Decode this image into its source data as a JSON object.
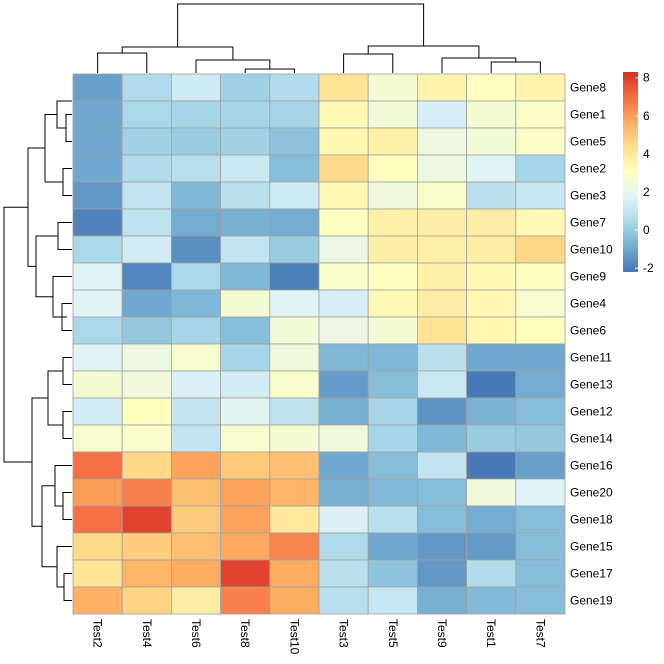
{
  "chart_data": {
    "type": "heatmap",
    "columns": [
      "Test2",
      "Test4",
      "Test6",
      "Test8",
      "Test10",
      "Test3",
      "Test5",
      "Test9",
      "Test1",
      "Test7"
    ],
    "rows": [
      "Gene8",
      "Gene1",
      "Gene5",
      "Gene2",
      "Gene3",
      "Gene7",
      "Gene10",
      "Gene9",
      "Gene4",
      "Gene6",
      "Gene11",
      "Gene13",
      "Gene12",
      "Gene14",
      "Gene16",
      "Gene20",
      "Gene18",
      "Gene15",
      "Gene17",
      "Gene19"
    ],
    "values": [
      [
        -1.2,
        0.5,
        1.3,
        0.2,
        0.6,
        4.2,
        2.6,
        3.5,
        3.0,
        3.5
      ],
      [
        -1.0,
        0.4,
        0.3,
        0.3,
        0.3,
        3.3,
        2.5,
        1.5,
        2.6,
        2.9
      ],
      [
        -1.0,
        0.2,
        0.0,
        0.2,
        -0.3,
        3.4,
        3.7,
        2.3,
        2.5,
        2.9
      ],
      [
        -1.0,
        0.6,
        0.7,
        1.2,
        -0.4,
        4.5,
        3.1,
        2.3,
        1.8,
        0.3
      ],
      [
        -1.4,
        1.0,
        -0.6,
        0.8,
        1.3,
        3.3,
        2.4,
        2.8,
        0.8,
        1.1
      ],
      [
        -1.9,
        0.9,
        -0.9,
        -0.8,
        -0.9,
        3.0,
        3.7,
        3.8,
        3.8,
        3.3
      ],
      [
        0.4,
        1.4,
        -1.6,
        1.0,
        0.0,
        2.2,
        3.8,
        3.7,
        3.8,
        4.6
      ],
      [
        1.8,
        -1.8,
        0.4,
        -0.6,
        -2.0,
        2.8,
        3.0,
        3.7,
        3.3,
        3.0
      ],
      [
        1.8,
        -1.0,
        -0.6,
        2.6,
        1.8,
        1.5,
        3.3,
        3.8,
        3.4,
        2.7
      ],
      [
        0.4,
        -0.1,
        0.3,
        -0.4,
        2.5,
        2.2,
        2.6,
        4.2,
        3.4,
        3.1
      ],
      [
        1.8,
        2.3,
        2.7,
        0.3,
        2.4,
        -0.6,
        -0.6,
        0.8,
        -1.0,
        -1.0
      ],
      [
        2.6,
        2.4,
        1.6,
        1.4,
        2.8,
        -1.3,
        -0.4,
        1.2,
        -2.1,
        -0.9
      ],
      [
        1.4,
        3.1,
        1.0,
        1.9,
        0.9,
        -0.8,
        0.3,
        -1.5,
        -0.7,
        -0.4
      ],
      [
        2.7,
        2.8,
        1.0,
        2.7,
        2.6,
        2.4,
        0.3,
        -0.6,
        0.0,
        -0.1
      ],
      [
        6.9,
        4.6,
        5.9,
        5.0,
        5.2,
        -1.0,
        -0.4,
        1.0,
        -2.1,
        -1.2
      ],
      [
        6.0,
        6.6,
        5.2,
        5.9,
        5.5,
        -0.8,
        -0.5,
        -0.4,
        2.4,
        1.7
      ],
      [
        6.9,
        7.9,
        4.9,
        5.9,
        4.0,
        1.6,
        0.7,
        -0.4,
        -0.9,
        -0.4
      ],
      [
        4.5,
        4.9,
        5.2,
        5.8,
        6.5,
        0.5,
        -1.0,
        -1.4,
        -1.3,
        -0.4
      ],
      [
        4.2,
        5.5,
        5.7,
        7.9,
        5.7,
        0.8,
        -0.2,
        -1.4,
        0.6,
        -0.4
      ],
      [
        5.6,
        4.7,
        3.8,
        6.6,
        5.7,
        0.7,
        1.1,
        -0.8,
        -0.5,
        -0.4
      ]
    ],
    "colorbar": {
      "ticks": [
        -2,
        0,
        2,
        4,
        6,
        8
      ],
      "min": -2.2,
      "max": 8.3,
      "colors": [
        "#4575B4",
        "#74ADD1",
        "#ABD9E9",
        "#E0F3F8",
        "#FFFFBF",
        "#FEE090",
        "#FDAE61",
        "#F46D43",
        "#D73027"
      ]
    }
  }
}
